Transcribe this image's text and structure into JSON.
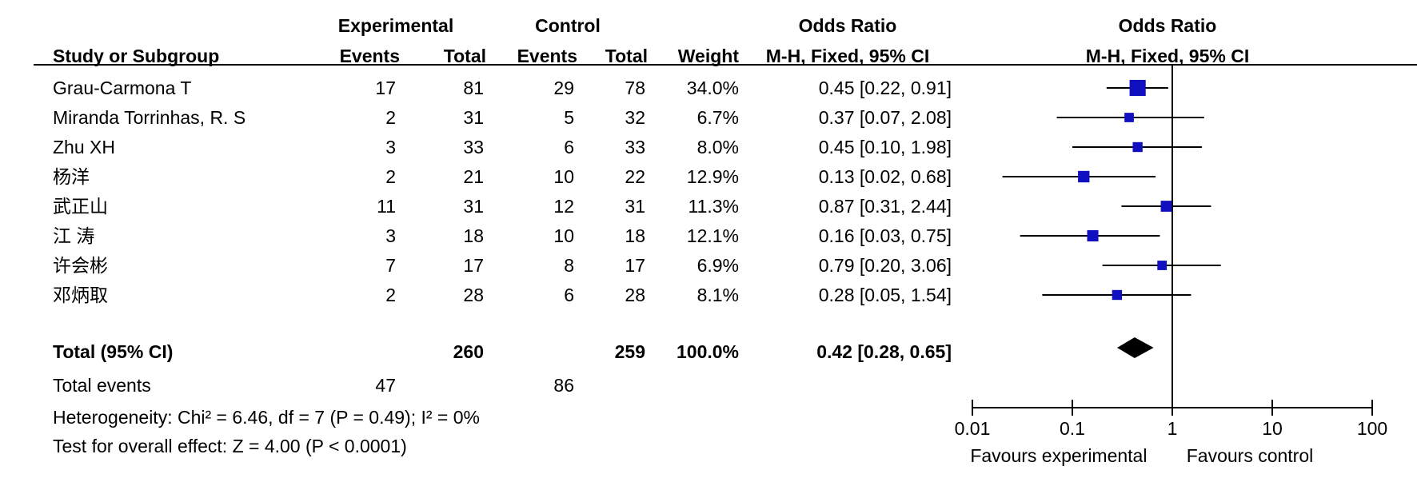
{
  "header": {
    "experimental": "Experimental",
    "control": "Control",
    "odds_ratio_table": "Odds Ratio",
    "odds_ratio_plot": "Odds Ratio",
    "study": "Study or Subgroup",
    "exp_events": "Events",
    "exp_total": "Total",
    "ctl_events": "Events",
    "ctl_total": "Total",
    "weight": "Weight",
    "method_table": "M-H, Fixed, 95% CI",
    "method_plot": "M-H, Fixed, 95% CI"
  },
  "studies": [
    {
      "name": "Grau-Carmona T",
      "exp_events": "17",
      "exp_total": "81",
      "ctl_events": "29",
      "ctl_total": "78",
      "weight": "34.0%",
      "ci": "0.45 [0.22, 0.91]"
    },
    {
      "name": "Miranda Torrinhas, R. S",
      "exp_events": "2",
      "exp_total": "31",
      "ctl_events": "5",
      "ctl_total": "32",
      "weight": "6.7%",
      "ci": "0.37 [0.07, 2.08]"
    },
    {
      "name": "Zhu XH",
      "exp_events": "3",
      "exp_total": "33",
      "ctl_events": "6",
      "ctl_total": "33",
      "weight": "8.0%",
      "ci": "0.45 [0.10, 1.98]"
    },
    {
      "name": "杨洋",
      "exp_events": "2",
      "exp_total": "21",
      "ctl_events": "10",
      "ctl_total": "22",
      "weight": "12.9%",
      "ci": "0.13 [0.02, 0.68]"
    },
    {
      "name": "武正山",
      "exp_events": "11",
      "exp_total": "31",
      "ctl_events": "12",
      "ctl_total": "31",
      "weight": "11.3%",
      "ci": "0.87 [0.31, 2.44]"
    },
    {
      "name": "江 涛",
      "exp_events": "3",
      "exp_total": "18",
      "ctl_events": "10",
      "ctl_total": "18",
      "weight": "12.1%",
      "ci": "0.16 [0.03, 0.75]"
    },
    {
      "name": "许会彬",
      "exp_events": "7",
      "exp_total": "17",
      "ctl_events": "8",
      "ctl_total": "17",
      "weight": "6.9%",
      "ci": "0.79 [0.20, 3.06]"
    },
    {
      "name": "邓炳取",
      "exp_events": "2",
      "exp_total": "28",
      "ctl_events": "6",
      "ctl_total": "28",
      "weight": "8.1%",
      "ci": "0.28 [0.05, 1.54]"
    }
  ],
  "total": {
    "label": "Total (95% CI)",
    "exp_total": "260",
    "ctl_total": "259",
    "weight": "100.0%",
    "ci": "0.42 [0.28, 0.65]"
  },
  "total_events": {
    "label": "Total events",
    "exp": "47",
    "ctl": "86"
  },
  "heterogeneity": "Heterogeneity: Chi² = 6.46, df = 7 (P = 0.49); I² = 0%",
  "overall_effect": "Test for overall effect: Z = 4.00 (P < 0.0001)",
  "colors": {
    "study_marker": "#1010c0",
    "diamond": "#000000",
    "lines": "#000000"
  },
  "chart_data": {
    "type": "forest",
    "scale": "log",
    "xlim": [
      0.01,
      100
    ],
    "ticks": [
      0.01,
      0.1,
      1,
      10,
      100
    ],
    "tick_labels": [
      "0.01",
      "0.1",
      "1",
      "10",
      "100"
    ],
    "reference_line": 1,
    "favours_left": "Favours experimental",
    "favours_right": "Favours control",
    "points": [
      {
        "or": 0.45,
        "lower": 0.22,
        "upper": 0.91,
        "weight": 34.0
      },
      {
        "or": 0.37,
        "lower": 0.07,
        "upper": 2.08,
        "weight": 6.7
      },
      {
        "or": 0.45,
        "lower": 0.1,
        "upper": 1.98,
        "weight": 8.0
      },
      {
        "or": 0.13,
        "lower": 0.02,
        "upper": 0.68,
        "weight": 12.9
      },
      {
        "or": 0.87,
        "lower": 0.31,
        "upper": 2.44,
        "weight": 11.3
      },
      {
        "or": 0.16,
        "lower": 0.03,
        "upper": 0.75,
        "weight": 12.1
      },
      {
        "or": 0.79,
        "lower": 0.2,
        "upper": 3.06,
        "weight": 6.9
      },
      {
        "or": 0.28,
        "lower": 0.05,
        "upper": 1.54,
        "weight": 8.1
      }
    ],
    "pooled": {
      "or": 0.42,
      "lower": 0.28,
      "upper": 0.65
    }
  }
}
